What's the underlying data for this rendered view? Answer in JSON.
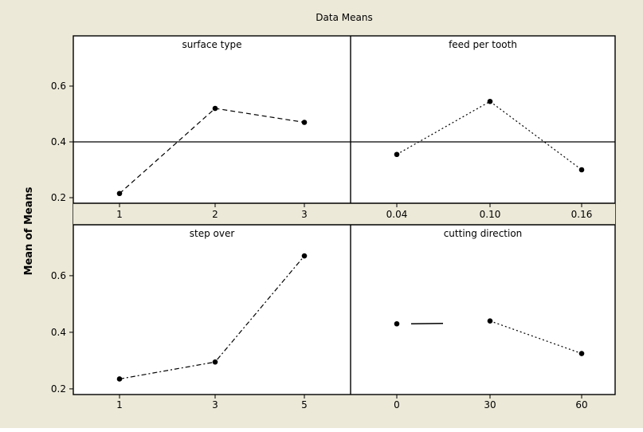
{
  "chart_data": {
    "type": "line",
    "title": "Data Means",
    "ylabel": "Mean of Means",
    "xlabel": "",
    "ylim": [
      0.18,
      0.78
    ],
    "yticks": [
      0.2,
      0.4,
      0.6
    ],
    "grid": false,
    "overall_mean": 0.4,
    "colors": {
      "outer_background": "#ECE9D8",
      "panel_background": "#FFFFFF",
      "line": "#000000"
    },
    "panels": [
      {
        "title": "surface type",
        "categories": [
          "1",
          "2",
          "3"
        ],
        "values": [
          0.215,
          0.52,
          0.47
        ],
        "line_style": "dashed"
      },
      {
        "title": "feed per tooth",
        "categories": [
          "0.04",
          "0.10",
          "0.16"
        ],
        "values": [
          0.355,
          0.545,
          0.3
        ],
        "line_style": "dotted"
      },
      {
        "title": "step over",
        "categories": [
          "1",
          "3",
          "5"
        ],
        "values": [
          0.235,
          0.295,
          0.67
        ],
        "line_style": "dashdot"
      },
      {
        "title": "cutting direction",
        "categories": [
          "0",
          "30",
          "60"
        ],
        "values": [
          0.43,
          0.44,
          0.325
        ],
        "line_style": "longdash"
      }
    ]
  }
}
